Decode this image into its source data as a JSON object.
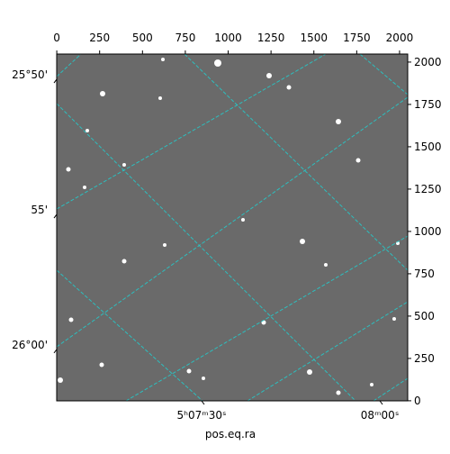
{
  "chart_data": {
    "type": "image",
    "xlabel": "pos.eq.ra",
    "xlim": [
      -0.5,
      2047.5
    ],
    "ylim": [
      -0.5,
      2047.5
    ],
    "xticks": [
      0,
      250,
      500,
      750,
      1000,
      1250,
      1500,
      1750,
      2000
    ],
    "yticks": [
      0,
      250,
      500,
      750,
      1000,
      1250,
      1500,
      1750,
      2000
    ],
    "dec_ticks": [
      {
        "value": 1925,
        "label": "25°50'"
      },
      {
        "value": 1127,
        "label": "55'"
      },
      {
        "value": 330,
        "label": "26°00'"
      }
    ],
    "ra_ticks": [
      {
        "value": 845,
        "label": "5ʰ07ᵐ30ˢ"
      },
      {
        "value": 1885,
        "label": "08ᵐ00ˢ"
      }
    ]
  }
}
